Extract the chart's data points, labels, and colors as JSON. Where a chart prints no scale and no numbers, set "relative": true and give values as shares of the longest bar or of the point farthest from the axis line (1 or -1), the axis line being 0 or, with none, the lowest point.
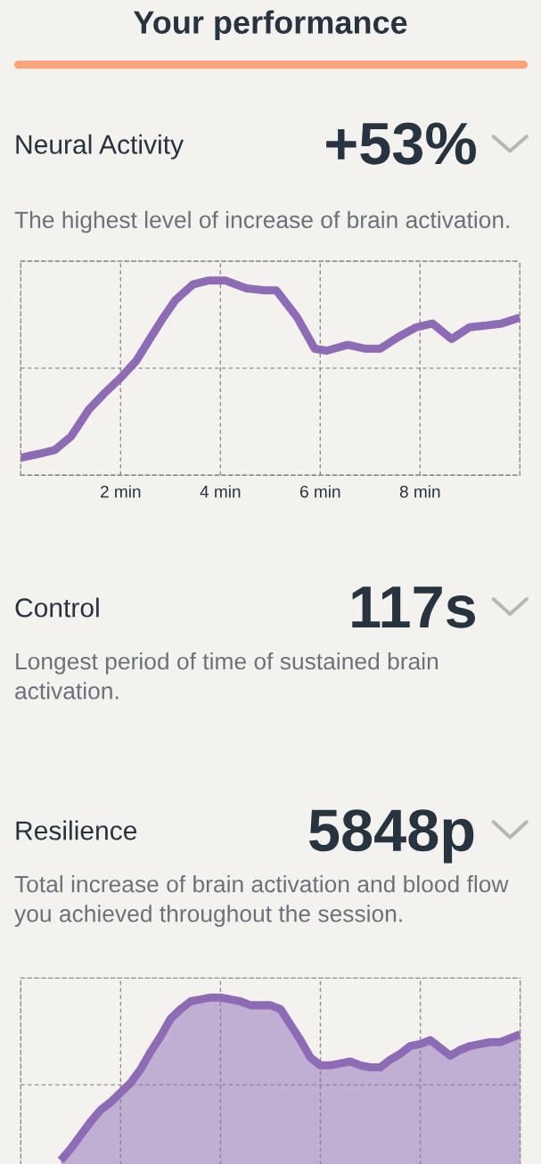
{
  "chart_data": [
    {
      "type": "other",
      "title": "Your performance"
    },
    {
      "type": "line",
      "title": "Neural Activity",
      "subtitle": "The highest level of increase of brain activation.",
      "annotations": [
        "+53%"
      ],
      "x": [
        0,
        0.36,
        0.68,
        1.01,
        1.37,
        1.67,
        2.0,
        2.32,
        2.56,
        2.83,
        3.1,
        3.45,
        3.75,
        4.11,
        4.52,
        4.88,
        5.12,
        5.54,
        5.89,
        6.13,
        6.55,
        6.91,
        7.2,
        7.56,
        7.92,
        8.25,
        8.63,
        8.99,
        9.35,
        9.64,
        10
      ],
      "values": [
        0.09,
        0.11,
        0.13,
        0.2,
        0.34,
        0.42,
        0.5,
        0.59,
        0.69,
        0.8,
        0.9,
        0.98,
        1,
        1,
        0.96,
        0.95,
        0.95,
        0.81,
        0.65,
        0.64,
        0.67,
        0.65,
        0.65,
        0.71,
        0.76,
        0.78,
        0.7,
        0.76,
        0.77,
        0.78,
        0.81
      ],
      "color": "#8d6bb5",
      "relative": true,
      "line_style": "solid",
      "xlim": [
        0,
        10
      ],
      "xticks": [
        {
          "value": 2,
          "label": "2 min"
        },
        {
          "value": 4,
          "label": "4 min"
        },
        {
          "value": 6,
          "label": "6 min"
        },
        {
          "value": 8,
          "label": "8 min"
        }
      ],
      "grid": true
    },
    {
      "type": "other",
      "title": "Control",
      "subtitle": "Longest period of time of sustained brain activation.",
      "annotations": [
        "117s"
      ]
    },
    {
      "type": "area",
      "title": "Resilience",
      "subtitle": "Total increase of brain activation and blood flow you achieved throughout the session.",
      "annotations": [
        "5848p"
      ],
      "categories": [
        null,
        null,
        null,
        null,
        null,
        null,
        null,
        null,
        null,
        null,
        null,
        null,
        null,
        null,
        null,
        null,
        null,
        null,
        null,
        null,
        null,
        null,
        null,
        null,
        null,
        null,
        null,
        null,
        null,
        null,
        null,
        null,
        null,
        null,
        null,
        null,
        null,
        null,
        null,
        null,
        null,
        null,
        null,
        null,
        null,
        null,
        null,
        null,
        null,
        null,
        null
      ],
      "values": [
        null,
        null,
        null,
        null,
        0.16,
        0.22,
        0.29,
        0.36,
        0.42,
        0.46,
        0.51,
        0.56,
        0.63,
        0.72,
        0.8,
        0.89,
        0.94,
        0.98,
        0.99,
        1,
        1,
        0.99,
        0.98,
        0.96,
        0.96,
        0.96,
        0.94,
        0.86,
        0.78,
        0.69,
        0.65,
        0.65,
        0.66,
        0.67,
        0.65,
        0.64,
        0.64,
        0.68,
        0.71,
        0.75,
        0.76,
        0.78,
        0.74,
        0.7,
        0.73,
        0.75,
        0.76,
        0.77,
        0.77,
        0.79,
        0.81
      ],
      "color": "#8d6bb5",
      "relative": true,
      "line_style": "solid",
      "grid": true
    }
  ]
}
